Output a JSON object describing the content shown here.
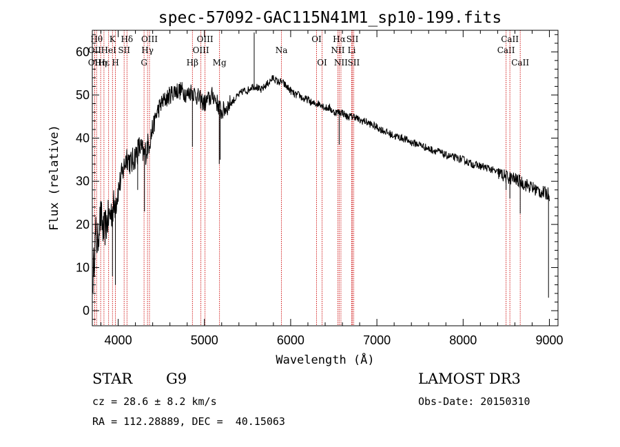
{
  "chart_data": {
    "type": "line",
    "title": "spec-57092-GAC115N41M1_sp10-199.fits",
    "xlabel": "Wavelength (Å)",
    "ylabel": "Flux (relative)",
    "xlim": [
      3700,
      9100
    ],
    "ylim": [
      -3.5,
      65
    ],
    "xticks": [
      4000,
      5000,
      6000,
      7000,
      8000,
      9000
    ],
    "yticks": [
      0,
      10,
      20,
      30,
      40,
      50,
      60
    ],
    "spectrum_anchors": {
      "x": [
        3700,
        3720,
        3740,
        3760,
        3780,
        3800,
        3830,
        3860,
        3900,
        3950,
        4000,
        4050,
        4100,
        4150,
        4200,
        4250,
        4300,
        4340,
        4400,
        4450,
        4500,
        4550,
        4600,
        4650,
        4700,
        4750,
        4800,
        4850,
        4900,
        4950,
        5000,
        5050,
        5100,
        5150,
        5200,
        5250,
        5300,
        5350,
        5400,
        5450,
        5500,
        5550,
        5600,
        5650,
        5700,
        5750,
        5800,
        5850,
        5900,
        5950,
        6000,
        6050,
        6100,
        6150,
        6200,
        6250,
        6300,
        6350,
        6400,
        6450,
        6500,
        6550,
        6600,
        6650,
        6700,
        6750,
        6800,
        6850,
        6900,
        7000,
        7100,
        7200,
        7300,
        7400,
        7500,
        7600,
        7700,
        7800,
        7900,
        8000,
        8100,
        8200,
        8300,
        8400,
        8500,
        8600,
        8700,
        8800,
        8900,
        9000
      ],
      "y": [
        5,
        12,
        18,
        15,
        20,
        22,
        18,
        20,
        22,
        24,
        28,
        32,
        36,
        34,
        36,
        38,
        36,
        38,
        42,
        46,
        48,
        49,
        50,
        51,
        51,
        51,
        50,
        51,
        50,
        49,
        48,
        49,
        50,
        48,
        46,
        47,
        48,
        49,
        50,
        51,
        51,
        52,
        52,
        51,
        52,
        53,
        54,
        53,
        53,
        52,
        51,
        50,
        50,
        49,
        49,
        48,
        48,
        48,
        47,
        47,
        46,
        46,
        46,
        45,
        45,
        45,
        44,
        44,
        43.5,
        42.5,
        41.5,
        40.5,
        40,
        39,
        38.5,
        37.5,
        37,
        36,
        35.5,
        35,
        34,
        33.5,
        33,
        32,
        31,
        30.5,
        29.5,
        28.5,
        27.5,
        27
      ]
    },
    "spikes": [
      {
        "x": 5577,
        "y": 64.5,
        "note": "sky line"
      },
      {
        "x": 3934,
        "y": 8
      },
      {
        "x": 3968,
        "y": 6
      },
      {
        "x": 4226,
        "y": 28
      },
      {
        "x": 4305,
        "y": 23
      },
      {
        "x": 4861,
        "y": 38
      },
      {
        "x": 5172,
        "y": 34
      },
      {
        "x": 5183,
        "y": 35
      },
      {
        "x": 6563,
        "y": 38.5
      },
      {
        "x": 8498,
        "y": 28
      },
      {
        "x": 8542,
        "y": 26
      },
      {
        "x": 8662,
        "y": 22.5
      },
      {
        "x": 8990,
        "y": 3
      }
    ],
    "line_markers": [
      {
        "x": 3750,
        "label": "Hθ",
        "row": 0
      },
      {
        "x": 3727,
        "label": "OII",
        "row": 1
      },
      {
        "x": 3727,
        "label": "OII",
        "row": 2
      },
      {
        "x": 3797,
        "label": "Hη",
        "row": 2
      },
      {
        "x": 3835,
        "label": "Hε",
        "row": 2
      },
      {
        "x": 3889,
        "label": "HeI",
        "row": 1
      },
      {
        "x": 3934,
        "label": "K",
        "row": 0
      },
      {
        "x": 3968,
        "label": "H",
        "row": 2
      },
      {
        "x": 4069,
        "label": "SII",
        "row": 1
      },
      {
        "x": 4102,
        "label": "Hδ",
        "row": 0
      },
      {
        "x": 4300,
        "label": "G",
        "row": 2
      },
      {
        "x": 4340,
        "label": "Hγ",
        "row": 1
      },
      {
        "x": 4363,
        "label": "OIII",
        "row": 0
      },
      {
        "x": 4861,
        "label": "Hβ",
        "row": 2
      },
      {
        "x": 4959,
        "label": "OIII",
        "row": 1
      },
      {
        "x": 5007,
        "label": "OIII",
        "row": 0
      },
      {
        "x": 5175,
        "label": "Mg",
        "row": 2
      },
      {
        "x": 5893,
        "label": "Na",
        "row": 1
      },
      {
        "x": 6300,
        "label": "OI",
        "row": 0
      },
      {
        "x": 6364,
        "label": "OI",
        "row": 2
      },
      {
        "x": 6548,
        "label": "NII",
        "row": 1
      },
      {
        "x": 6563,
        "label": "Hα",
        "row": 0
      },
      {
        "x": 6583,
        "label": "NII",
        "row": 2
      },
      {
        "x": 6708,
        "label": "Li",
        "row": 1
      },
      {
        "x": 6716,
        "label": "SII",
        "row": 0
      },
      {
        "x": 6731,
        "label": "SII",
        "row": 2
      },
      {
        "x": 8498,
        "label": "CaII",
        "row": 1
      },
      {
        "x": 8542,
        "label": "CaII",
        "row": 0
      },
      {
        "x": 8662,
        "label": "CaII",
        "row": 2
      }
    ]
  },
  "info": {
    "object_class": "STAR",
    "subclass": "G9",
    "survey": "LAMOST DR3",
    "redshift": "cz = 28.6 ± 8.2 km/s",
    "obs_date": "Obs-Date: 20150310",
    "coords": "RA = 112.28889, DEC =  40.15063"
  },
  "colors": {
    "spectrum": "#000000",
    "marker_lines": "#cc0000",
    "background": "#ffffff"
  }
}
